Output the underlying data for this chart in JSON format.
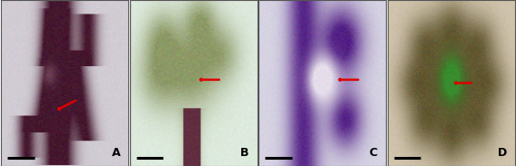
{
  "figsize": [
    5.67,
    1.83
  ],
  "dpi": 100,
  "panels": [
    "A",
    "B",
    "C",
    "D"
  ],
  "bg_colors": {
    "A": [
      0.82,
      0.8,
      0.83
    ],
    "B": [
      0.87,
      0.92,
      0.87
    ],
    "C": [
      0.84,
      0.83,
      0.89
    ],
    "D": [
      0.82,
      0.77,
      0.68
    ]
  },
  "border_color": "#555555",
  "label_color": "#000000",
  "arrow_color": "#dd0000",
  "arrow_hw": 0.012,
  "arrow_hl": 0.018,
  "scale_bar_color": "#000000",
  "scale_bar_lw": 2.2,
  "label_fontsize": 9,
  "label_bold": true,
  "panels_wspace": 0.008
}
